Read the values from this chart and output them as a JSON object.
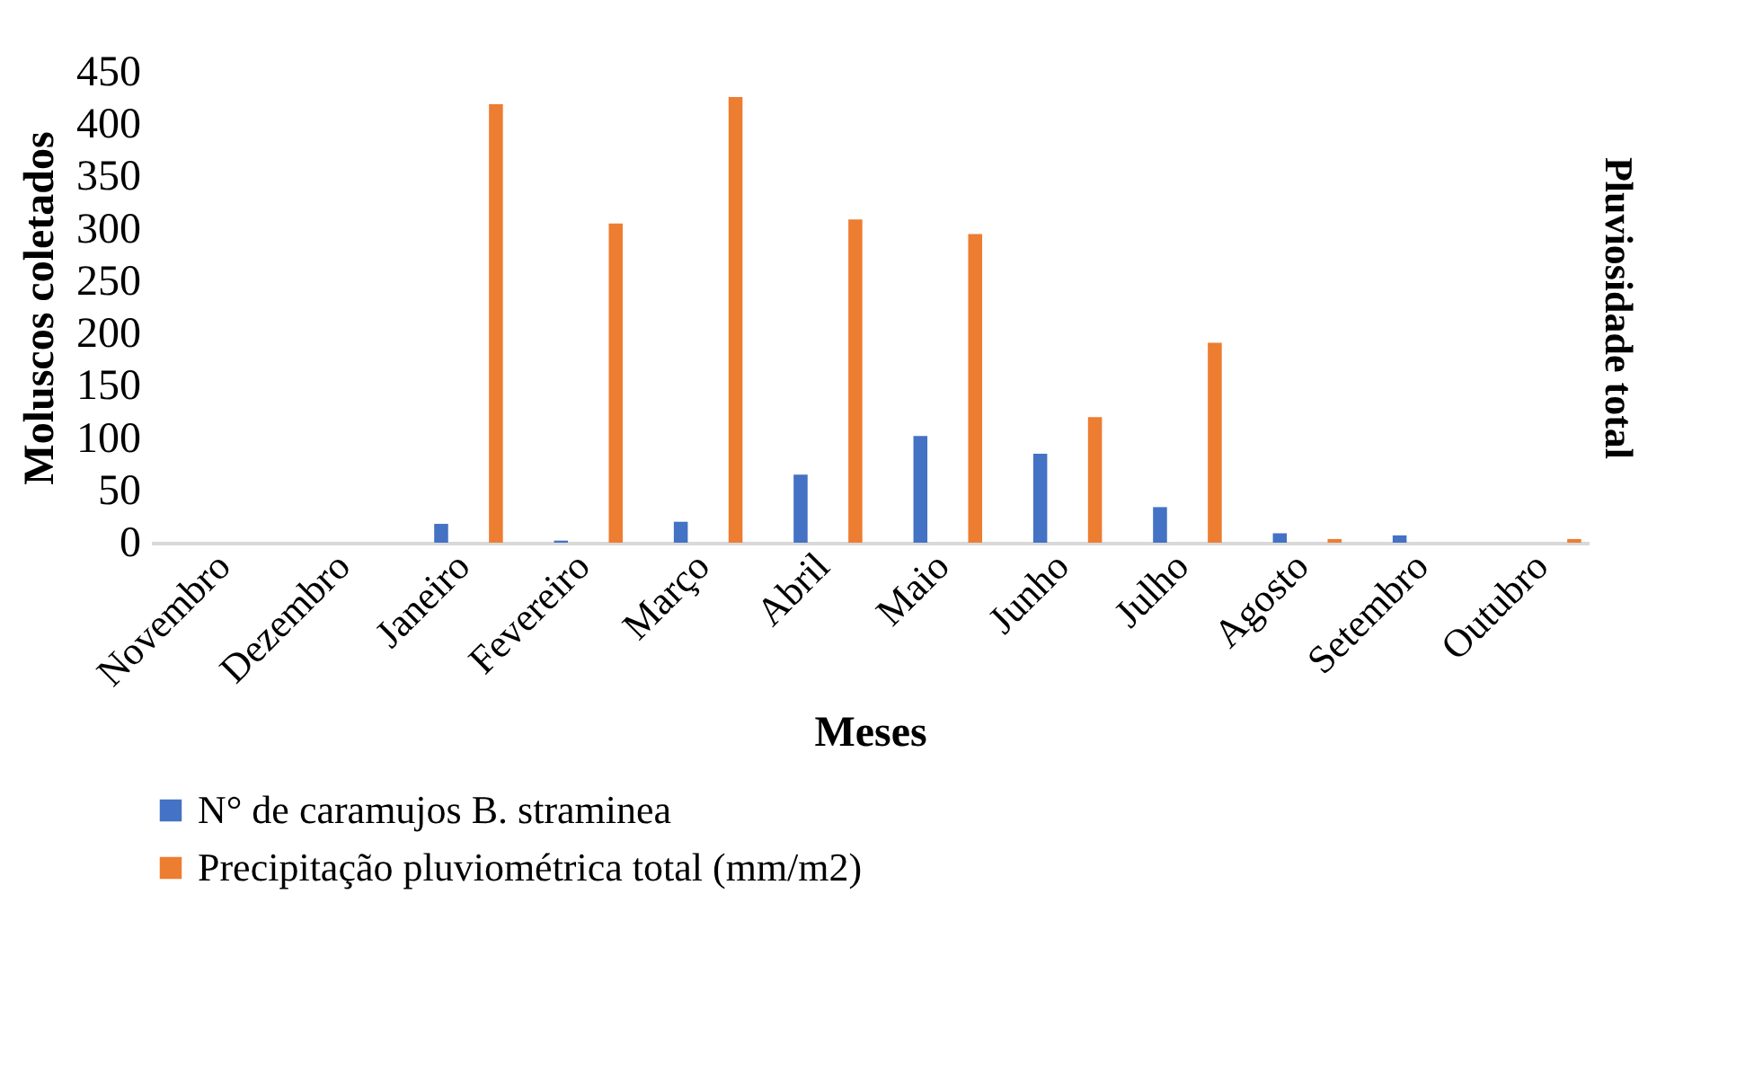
{
  "chart_data": {
    "type": "bar",
    "xlabel": "Meses",
    "ylabel": "Moluscos coletados",
    "y2label": "Pluviosidade total",
    "categories": [
      "Novembro",
      "Dezembro",
      "Janeiro",
      "Fevereiro",
      "Março",
      "Abril",
      "Maio",
      "Junho",
      "Julho",
      "Agosto",
      "Setembro",
      "Outubro"
    ],
    "series": [
      {
        "name": "N° de caramujos  B. straminea",
        "color": "#4472c4",
        "values": [
          0,
          0,
          18,
          2,
          20,
          65,
          102,
          85,
          34,
          9,
          7,
          0
        ]
      },
      {
        "name": "Precipitação pluviométrica total (mm/m2)",
        "color": "#ed7d31",
        "values": [
          0,
          0,
          419,
          305,
          426,
          309,
          295,
          120,
          191,
          3.5,
          0,
          3.5
        ]
      }
    ],
    "ylim": [
      0,
      450
    ],
    "yticks": [
      0,
      50,
      100,
      150,
      200,
      250,
      300,
      350,
      400,
      450
    ],
    "legend": "bottom"
  }
}
